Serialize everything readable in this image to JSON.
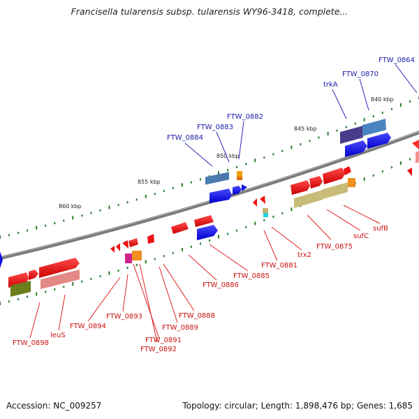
{
  "title": "Francisella tularensis subsp. tularensis WY96-3418, complete...",
  "footer": {
    "accession": "Accession: NC_009257",
    "summary": "Topology: circular; Length: 1,898,476 bp; Genes: 1,685"
  },
  "colors": {
    "backbone": "#808080",
    "label_top": "#1a1aa8",
    "label_bottom": "#cc1010",
    "leader_top": "#2a2ab8",
    "leader_bottom": "#e02020",
    "tick": "#2a7a2a"
  },
  "scale_labels": [
    "860 kbp",
    "855 kbp",
    "850 kbp",
    "845 kbp",
    "840 kbp"
  ],
  "top_labels": [
    "FTW_0864",
    "FTW_0870",
    "trkA",
    "FTW_0882",
    "FTW_0883",
    "FTW_0884"
  ],
  "bottom_labels": [
    "FTW_0898",
    "leuS",
    "FTW_0894",
    "FTW_0893",
    "FTW_0891",
    "FTW_0892",
    "FTW_0889",
    "FTW_0888",
    "FTW_0886",
    "FTW_0885",
    "FTW_0881",
    "trx2",
    "FTW_0875",
    "sufC",
    "sufB"
  ]
}
